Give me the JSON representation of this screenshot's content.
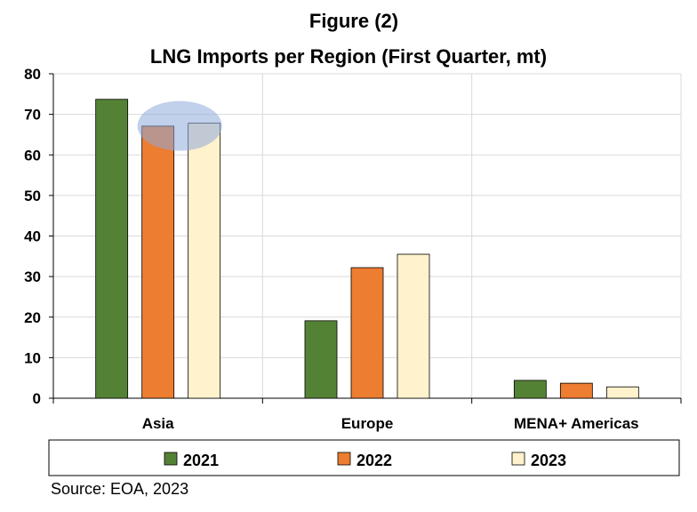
{
  "chart_data": {
    "type": "bar",
    "title": "Figure (2)",
    "subtitle": "LNG Imports per Region (First Quarter, mt)",
    "categories": [
      "Asia",
      "Europe",
      "MENA+ Americas"
    ],
    "series": [
      {
        "name": "2021",
        "values": [
          73.7,
          19.1,
          4.4
        ],
        "color": "#548235"
      },
      {
        "name": "2022",
        "values": [
          67.1,
          32.2,
          3.7
        ],
        "color": "#ED7D31"
      },
      {
        "name": "2023",
        "values": [
          67.8,
          35.5,
          2.8
        ],
        "color": "#FFF2CC"
      }
    ],
    "ylim": [
      0,
      80
    ],
    "yticks": [
      0,
      10,
      20,
      30,
      40,
      50,
      60,
      70,
      80
    ],
    "grid": true,
    "legend": "bottom",
    "annotation": {
      "type": "highlight-ellipse",
      "category": "Asia",
      "series": [
        "2022",
        "2023"
      ],
      "color": "#8EA9DB"
    }
  },
  "source": "Source: EOA, 2023"
}
